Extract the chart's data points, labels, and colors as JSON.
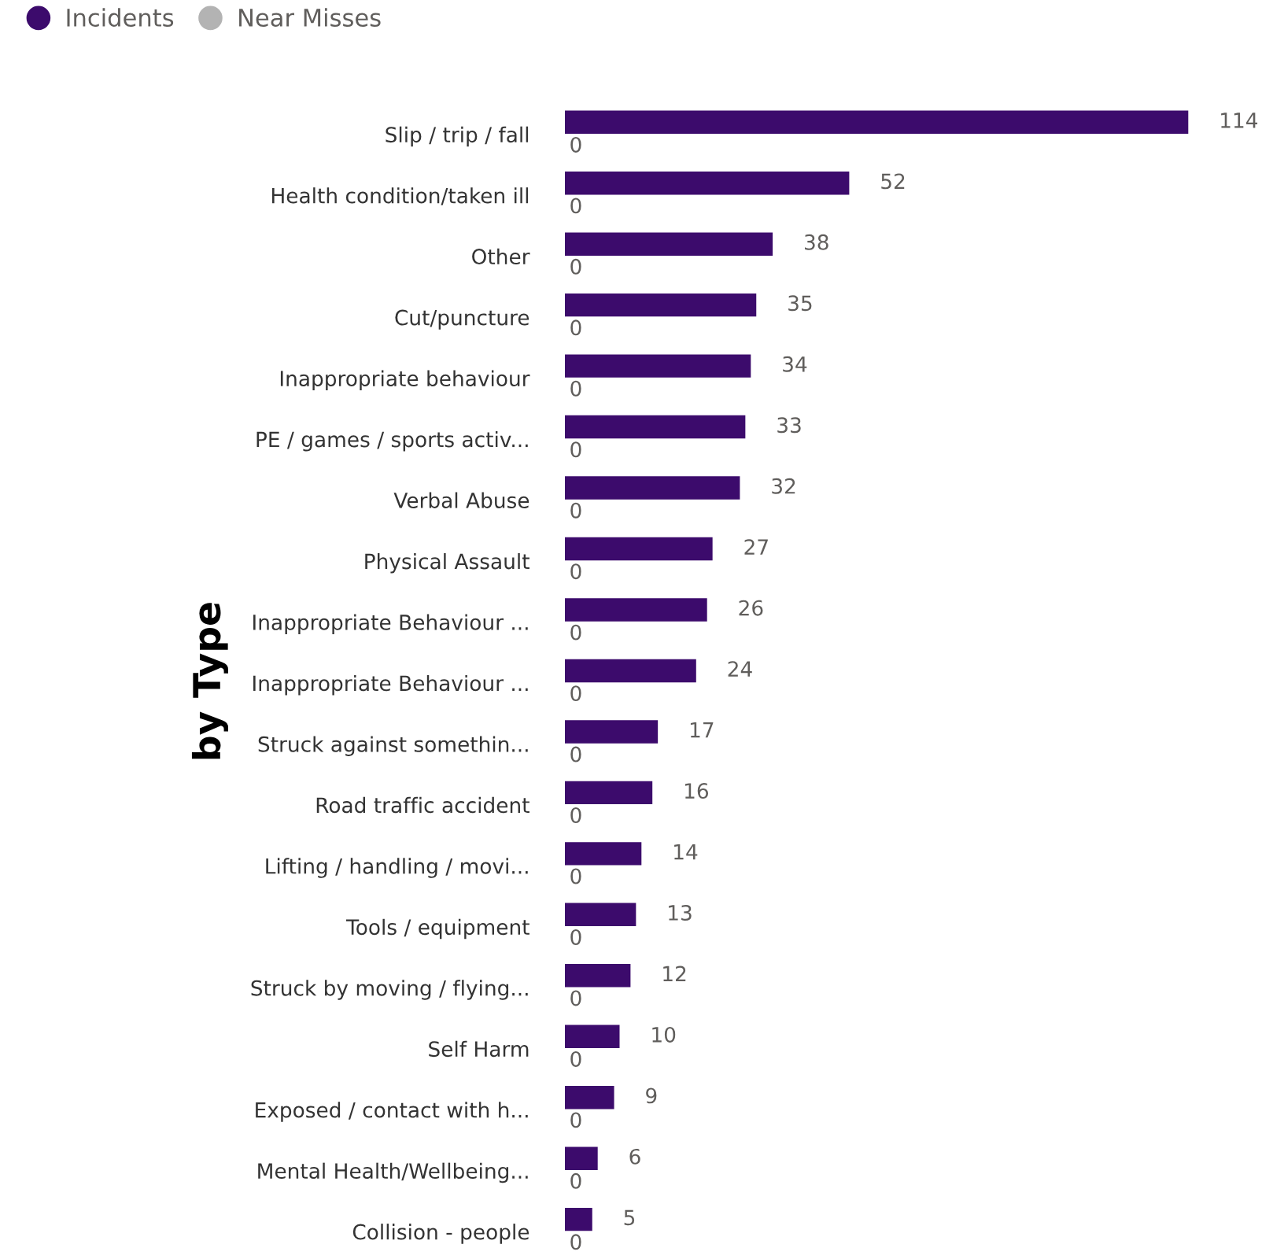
{
  "chart_data": {
    "type": "bar",
    "orientation": "horizontal",
    "ylabel": "by Type",
    "legend": "top left",
    "data_labels": true,
    "grid": false,
    "tick_labels": "y",
    "categories": [
      "Slip / trip / fall",
      "Health condition/taken ill",
      "Other",
      "Cut/puncture",
      "Inappropriate behaviour",
      "PE / games / sports activ...",
      "Verbal Abuse",
      "Physical Assault",
      "Inappropriate Behaviour ...",
      "Inappropriate Behaviour ...",
      "Struck against somethin...",
      "Road traffic accident",
      "Lifting / handling / movi...",
      "Tools / equipment",
      "Struck by moving / flying...",
      "Self Harm",
      "Exposed / contact with h...",
      "Mental Health/Wellbeing...",
      "Collision - people"
    ],
    "series": [
      {
        "name": "Incidents",
        "color": "#3c0b6c",
        "values": [
          114,
          52,
          38,
          35,
          34,
          33,
          32,
          27,
          26,
          24,
          17,
          16,
          14,
          13,
          12,
          10,
          9,
          6,
          5
        ]
      },
      {
        "name": "Near Misses",
        "color": "#b3b3b3",
        "values": [
          0,
          0,
          0,
          0,
          0,
          0,
          0,
          0,
          0,
          0,
          0,
          0,
          0,
          0,
          0,
          0,
          0,
          0,
          0
        ]
      }
    ]
  }
}
